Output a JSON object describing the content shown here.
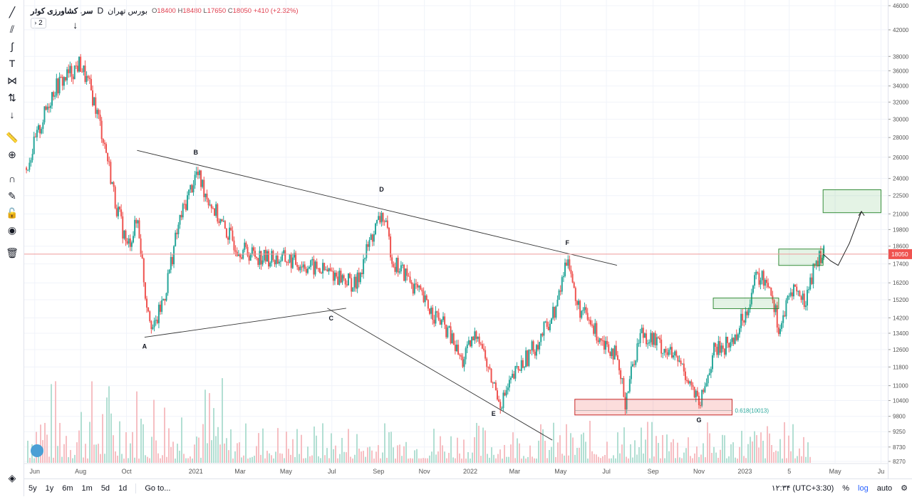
{
  "legend": {
    "symbol": "سر. کشاورزی کوثر",
    "interval": "D",
    "exchange": "بورس تهران",
    "open_label": "O",
    "open": "18400",
    "high_label": "H",
    "high": "18480",
    "low_label": "L",
    "low": "17650",
    "close_label": "C",
    "close": "18050",
    "change": "+410 (+2.32%)",
    "collapse_count": "2"
  },
  "bottom_bar": {
    "ranges": [
      "5y",
      "1y",
      "6m",
      "1m",
      "5d",
      "1d"
    ],
    "goto": "Go to...",
    "clock": "۱۲:۳۴ (UTC+3:30)",
    "percent": "%",
    "log": "log",
    "auto": "auto"
  },
  "toolbar": {
    "icons": [
      "trend-line-icon",
      "pitchfork-icon",
      "brush-icon",
      "text-icon",
      "pattern-icon",
      "prediction-icon",
      "arrow-down-icon",
      "ruler-icon",
      "zoom-in-icon",
      "magnet-icon",
      "lock-drawing-icon",
      "lock-icon",
      "eye-icon",
      "trash-icon",
      "layers-icon"
    ]
  },
  "chart_data": {
    "type": "candlestick",
    "price_scale": "log",
    "current_price": 18050,
    "current_price_label": "18050",
    "y_ticks": [
      8270,
      8730,
      9250,
      9800,
      10400,
      11000,
      11800,
      12600,
      13400,
      14200,
      15200,
      16200,
      17400,
      18600,
      19800,
      21000,
      22500,
      24000,
      26000,
      28000,
      30000,
      32000,
      34000,
      36000,
      38000,
      42000,
      46000
    ],
    "x_ticks": [
      "Jun",
      "Aug",
      "Oct",
      "2021",
      "Mar",
      "May",
      "Jul",
      "Sep",
      "Nov",
      "2022",
      "Mar",
      "May",
      "Jul",
      "Sep",
      "Nov",
      "2023",
      "5",
      "May",
      "Ju"
    ],
    "pattern_points": [
      {
        "label": "A",
        "date": "2020-10-25",
        "price": 13200
      },
      {
        "label": "B",
        "date": "2021-01-01",
        "price": 25300
      },
      {
        "label": "C",
        "date": "2021-06-30",
        "price": 14600
      },
      {
        "label": "D",
        "date": "2021-09-05",
        "price": 21300
      },
      {
        "label": "E",
        "date": "2022-02-01",
        "price": 10200
      },
      {
        "label": "F",
        "date": "2022-05-10",
        "price": 18100
      },
      {
        "label": "G",
        "date": "2022-11-01",
        "price": 10000
      }
    ],
    "fib_label": "0.618(10013)",
    "price_path": [
      [
        "2020-05-20",
        25000
      ],
      [
        "2020-06-05",
        28500
      ],
      [
        "2020-06-25",
        33500
      ],
      [
        "2020-07-15",
        35500
      ],
      [
        "2020-07-30",
        37000
      ],
      [
        "2020-08-15",
        33000
      ],
      [
        "2020-08-30",
        28000
      ],
      [
        "2020-09-15",
        22000
      ],
      [
        "2020-10-01",
        18500
      ],
      [
        "2020-10-15",
        20500
      ],
      [
        "2020-10-25",
        15500
      ],
      [
        "2020-11-05",
        13500
      ],
      [
        "2020-11-20",
        15500
      ],
      [
        "2020-12-10",
        20500
      ],
      [
        "2021-01-01",
        24500
      ],
      [
        "2021-01-15",
        22500
      ],
      [
        "2021-02-05",
        20000
      ],
      [
        "2021-02-25",
        18500
      ],
      [
        "2021-03-10",
        18200
      ],
      [
        "2021-04-01",
        17800
      ],
      [
        "2021-05-01",
        17700
      ],
      [
        "2021-06-01",
        17200
      ],
      [
        "2021-06-30",
        16800
      ],
      [
        "2021-07-15",
        16500
      ],
      [
        "2021-08-01",
        16000
      ],
      [
        "2021-08-20",
        19000
      ],
      [
        "2021-09-05",
        21000
      ],
      [
        "2021-09-20",
        17500
      ],
      [
        "2021-10-10",
        16500
      ],
      [
        "2021-11-01",
        15000
      ],
      [
        "2021-12-01",
        13500
      ],
      [
        "2021-12-20",
        12000
      ],
      [
        "2022-01-10",
        13500
      ],
      [
        "2022-01-25",
        11500
      ],
      [
        "2022-02-10",
        10300
      ],
      [
        "2022-03-01",
        11500
      ],
      [
        "2022-04-01",
        13000
      ],
      [
        "2022-04-25",
        14800
      ],
      [
        "2022-05-10",
        18100
      ],
      [
        "2022-05-20",
        15000
      ],
      [
        "2022-06-15",
        13500
      ],
      [
        "2022-07-10",
        12500
      ],
      [
        "2022-07-25",
        10400
      ],
      [
        "2022-08-15",
        13500
      ],
      [
        "2022-09-10",
        12800
      ],
      [
        "2022-10-10",
        11800
      ],
      [
        "2022-11-01",
        10100
      ],
      [
        "2022-11-20",
        12500
      ],
      [
        "2022-12-15",
        13000
      ],
      [
        "2023-01-01",
        14500
      ],
      [
        "2023-01-15",
        16500
      ],
      [
        "2023-02-01",
        16300
      ],
      [
        "2023-02-15",
        13500
      ],
      [
        "2023-03-05",
        16000
      ],
      [
        "2023-03-20",
        15000
      ],
      [
        "2023-04-05",
        17600
      ],
      [
        "2023-04-15",
        18050
      ]
    ],
    "zones": [
      {
        "kind": "support",
        "date_from": "2022-05-20",
        "date_to": "2022-12-15",
        "price_from": 9850,
        "price_to": 10450
      },
      {
        "kind": "target",
        "date_from": "2022-11-20",
        "date_to": "2023-02-15",
        "price_from": 14700,
        "price_to": 15300
      },
      {
        "kind": "target",
        "date_from": "2023-02-15",
        "date_to": "2023-04-15",
        "price_from": 17300,
        "price_to": 18400
      },
      {
        "kind": "target",
        "date_from": "2023-04-15",
        "date_to": "2023-07-01",
        "price_from": 21100,
        "price_to": 23000
      }
    ],
    "forecast_path": [
      [
        "2023-04-15",
        18050
      ],
      [
        "2023-04-25",
        17600
      ],
      [
        "2023-05-05",
        17300
      ],
      [
        "2023-05-20",
        18800
      ],
      [
        "2023-06-05",
        21200
      ]
    ]
  }
}
